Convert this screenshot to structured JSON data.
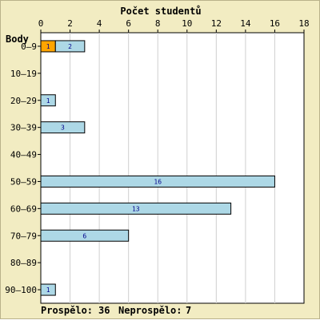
{
  "chart_data": {
    "type": "bar",
    "orientation": "horizontal",
    "stacked": true,
    "title": "Počet studentů",
    "ylabel": "Body",
    "xlabel": "",
    "xlim": [
      0,
      18
    ],
    "x_ticks": [
      0,
      2,
      4,
      6,
      8,
      10,
      12,
      14,
      16,
      18
    ],
    "grid": true,
    "categories": [
      "0–9",
      "10–19",
      "20–29",
      "30–39",
      "40–49",
      "50–59",
      "60–69",
      "70–79",
      "80–89",
      "90–100"
    ],
    "series": [
      {
        "color": "#ffa500",
        "values": [
          1,
          0,
          0,
          0,
          0,
          0,
          0,
          0,
          0,
          0
        ]
      },
      {
        "color": "#add8e6",
        "values": [
          2,
          0,
          1,
          3,
          0,
          16,
          13,
          6,
          0,
          1
        ]
      }
    ]
  },
  "footer": {
    "passed_label": "Prospělo:",
    "passed_value": "36",
    "failed_label": "Neprospělo:",
    "failed_value": "7"
  },
  "colors": {
    "background": "#f2ecc2",
    "plot_background": "#ffffff",
    "grid": "#cfcfcf",
    "bar_label": "#00008b"
  }
}
